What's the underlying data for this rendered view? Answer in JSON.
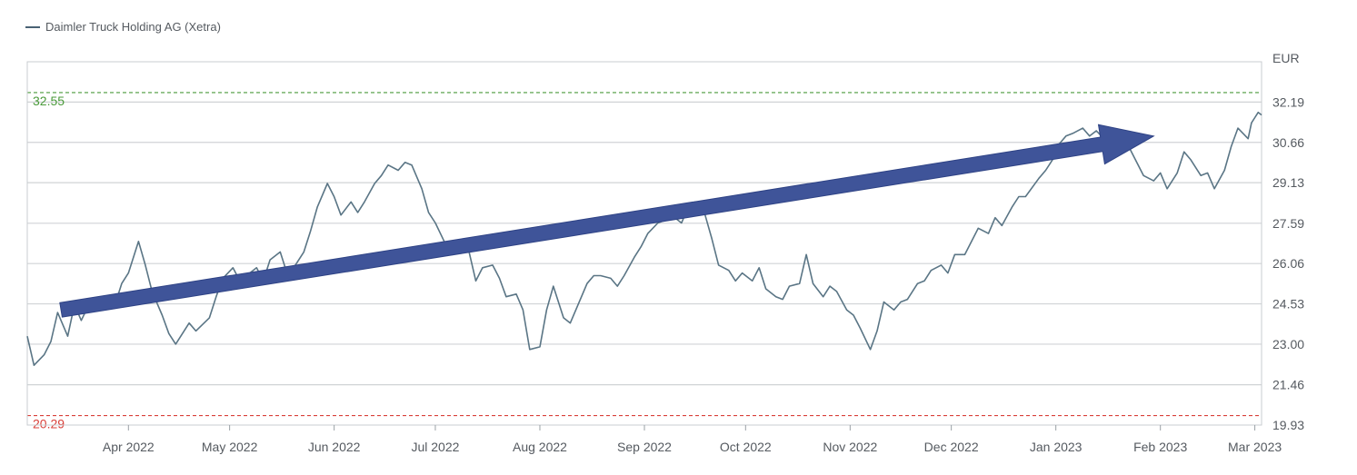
{
  "chart_data": {
    "type": "line",
    "title": "",
    "legend": {
      "label": "Daimler Truck Holding AG (Xetra)",
      "placement": "top-left"
    },
    "currency_label": "EUR",
    "ylim": [
      19.93,
      33.72
    ],
    "y_ticks": [
      "32.19",
      "30.66",
      "29.13",
      "27.59",
      "26.06",
      "24.53",
      "23.00",
      "21.46",
      "19.93"
    ],
    "x_ticks": [
      "Apr 2022",
      "May 2022",
      "Jun 2022",
      "Jul 2022",
      "Aug 2022",
      "Sep 2022",
      "Oct 2022",
      "Nov 2022",
      "Dec 2022",
      "Jan 2023",
      "Feb 2023",
      "Mar 2023"
    ],
    "x_tick_dates": [
      "2022-04-01",
      "2022-05-01",
      "2022-06-01",
      "2022-07-01",
      "2022-08-01",
      "2022-09-01",
      "2022-10-01",
      "2022-11-01",
      "2022-12-01",
      "2023-01-01",
      "2023-02-01",
      "2023-03-01"
    ],
    "xlim": [
      "2022-03-02",
      "2023-03-03"
    ],
    "grid": true,
    "reference_lines": [
      {
        "label": "32.55",
        "value": 32.55,
        "color": "#4a9a3a",
        "style": "dashed"
      },
      {
        "label": "20.29",
        "value": 20.29,
        "color": "#d9403a",
        "style": "dashed"
      }
    ],
    "annotation_arrow": {
      "from": {
        "date": "2022-03-12",
        "value": 24.3
      },
      "to": {
        "date": "2023-01-30",
        "value": 30.9
      },
      "color": "#3f5499"
    },
    "series": [
      {
        "name": "Daimler Truck Holding AG (Xetra)",
        "color": "#5a7585",
        "points": [
          [
            "2022-03-02",
            23.3
          ],
          [
            "2022-03-04",
            22.2
          ],
          [
            "2022-03-07",
            22.6
          ],
          [
            "2022-03-09",
            23.1
          ],
          [
            "2022-03-11",
            24.2
          ],
          [
            "2022-03-14",
            23.3
          ],
          [
            "2022-03-16",
            24.5
          ],
          [
            "2022-03-18",
            23.9
          ],
          [
            "2022-03-21",
            24.7
          ],
          [
            "2022-03-23",
            24.3
          ],
          [
            "2022-03-25",
            24.7
          ],
          [
            "2022-03-28",
            24.5
          ],
          [
            "2022-03-30",
            25.3
          ],
          [
            "2022-04-01",
            25.7
          ],
          [
            "2022-04-04",
            26.9
          ],
          [
            "2022-04-06",
            26.0
          ],
          [
            "2022-04-08",
            25.0
          ],
          [
            "2022-04-11",
            24.1
          ],
          [
            "2022-04-13",
            23.4
          ],
          [
            "2022-04-15",
            23.0
          ],
          [
            "2022-04-19",
            23.8
          ],
          [
            "2022-04-21",
            23.5
          ],
          [
            "2022-04-25",
            24.0
          ],
          [
            "2022-04-27",
            24.8
          ],
          [
            "2022-04-29",
            25.5
          ],
          [
            "2022-05-02",
            25.9
          ],
          [
            "2022-05-04",
            25.4
          ],
          [
            "2022-05-06",
            25.6
          ],
          [
            "2022-05-09",
            25.9
          ],
          [
            "2022-05-11",
            25.4
          ],
          [
            "2022-05-13",
            26.2
          ],
          [
            "2022-05-16",
            26.5
          ],
          [
            "2022-05-18",
            25.7
          ],
          [
            "2022-05-20",
            25.9
          ],
          [
            "2022-05-23",
            26.5
          ],
          [
            "2022-05-25",
            27.3
          ],
          [
            "2022-05-27",
            28.2
          ],
          [
            "2022-05-30",
            29.1
          ],
          [
            "2022-06-01",
            28.6
          ],
          [
            "2022-06-03",
            27.9
          ],
          [
            "2022-06-06",
            28.4
          ],
          [
            "2022-06-08",
            28.0
          ],
          [
            "2022-06-10",
            28.4
          ],
          [
            "2022-06-13",
            29.1
          ],
          [
            "2022-06-15",
            29.4
          ],
          [
            "2022-06-17",
            29.8
          ],
          [
            "2022-06-20",
            29.6
          ],
          [
            "2022-06-22",
            29.9
          ],
          [
            "2022-06-24",
            29.8
          ],
          [
            "2022-06-27",
            28.9
          ],
          [
            "2022-06-29",
            28.0
          ],
          [
            "2022-07-01",
            27.6
          ],
          [
            "2022-07-04",
            26.8
          ],
          [
            "2022-07-06",
            26.4
          ],
          [
            "2022-07-08",
            26.9
          ],
          [
            "2022-07-11",
            26.5
          ],
          [
            "2022-07-13",
            25.4
          ],
          [
            "2022-07-15",
            25.9
          ],
          [
            "2022-07-18",
            26.0
          ],
          [
            "2022-07-20",
            25.5
          ],
          [
            "2022-07-22",
            24.8
          ],
          [
            "2022-07-25",
            24.9
          ],
          [
            "2022-07-27",
            24.3
          ],
          [
            "2022-07-29",
            22.8
          ],
          [
            "2022-08-01",
            22.9
          ],
          [
            "2022-08-03",
            24.3
          ],
          [
            "2022-08-05",
            25.2
          ],
          [
            "2022-08-08",
            24.0
          ],
          [
            "2022-08-10",
            23.8
          ],
          [
            "2022-08-12",
            24.4
          ],
          [
            "2022-08-15",
            25.3
          ],
          [
            "2022-08-17",
            25.6
          ],
          [
            "2022-08-19",
            25.6
          ],
          [
            "2022-08-22",
            25.5
          ],
          [
            "2022-08-24",
            25.2
          ],
          [
            "2022-08-26",
            25.6
          ],
          [
            "2022-08-29",
            26.3
          ],
          [
            "2022-08-31",
            26.7
          ],
          [
            "2022-09-02",
            27.2
          ],
          [
            "2022-09-05",
            27.6
          ],
          [
            "2022-09-07",
            27.7
          ],
          [
            "2022-09-09",
            27.9
          ],
          [
            "2022-09-12",
            27.6
          ],
          [
            "2022-09-14",
            28.2
          ],
          [
            "2022-09-16",
            28.4
          ],
          [
            "2022-09-19",
            27.9
          ],
          [
            "2022-09-21",
            27.0
          ],
          [
            "2022-09-23",
            26.0
          ],
          [
            "2022-09-26",
            25.8
          ],
          [
            "2022-09-28",
            25.4
          ],
          [
            "2022-09-30",
            25.7
          ],
          [
            "2022-10-03",
            25.4
          ],
          [
            "2022-10-05",
            25.9
          ],
          [
            "2022-10-07",
            25.1
          ],
          [
            "2022-10-10",
            24.8
          ],
          [
            "2022-10-12",
            24.7
          ],
          [
            "2022-10-14",
            25.2
          ],
          [
            "2022-10-17",
            25.3
          ],
          [
            "2022-10-19",
            26.4
          ],
          [
            "2022-10-21",
            25.3
          ],
          [
            "2022-10-24",
            24.8
          ],
          [
            "2022-10-26",
            25.2
          ],
          [
            "2022-10-28",
            25.0
          ],
          [
            "2022-10-31",
            24.3
          ],
          [
            "2022-11-02",
            24.1
          ],
          [
            "2022-11-04",
            23.6
          ],
          [
            "2022-11-07",
            22.8
          ],
          [
            "2022-11-09",
            23.5
          ],
          [
            "2022-11-11",
            24.6
          ],
          [
            "2022-11-14",
            24.3
          ],
          [
            "2022-11-16",
            24.6
          ],
          [
            "2022-11-18",
            24.7
          ],
          [
            "2022-11-21",
            25.3
          ],
          [
            "2022-11-23",
            25.4
          ],
          [
            "2022-11-25",
            25.8
          ],
          [
            "2022-11-28",
            26.0
          ],
          [
            "2022-11-30",
            25.7
          ],
          [
            "2022-12-02",
            26.4
          ],
          [
            "2022-12-05",
            26.4
          ],
          [
            "2022-12-07",
            26.9
          ],
          [
            "2022-12-09",
            27.4
          ],
          [
            "2022-12-12",
            27.2
          ],
          [
            "2022-12-14",
            27.8
          ],
          [
            "2022-12-16",
            27.5
          ],
          [
            "2022-12-19",
            28.2
          ],
          [
            "2022-12-21",
            28.6
          ],
          [
            "2022-12-23",
            28.6
          ],
          [
            "2022-12-27",
            29.3
          ],
          [
            "2022-12-29",
            29.6
          ],
          [
            "2022-12-31",
            30.0
          ],
          [
            "2023-01-02",
            30.6
          ],
          [
            "2023-01-04",
            30.9
          ],
          [
            "2023-01-06",
            31.0
          ],
          [
            "2023-01-09",
            31.2
          ],
          [
            "2023-01-11",
            30.9
          ],
          [
            "2023-01-13",
            31.1
          ],
          [
            "2023-01-16",
            30.7
          ],
          [
            "2023-01-18",
            30.6
          ],
          [
            "2023-01-20",
            30.9
          ],
          [
            "2023-01-23",
            30.4
          ],
          [
            "2023-01-25",
            29.9
          ],
          [
            "2023-01-27",
            29.4
          ],
          [
            "2023-01-30",
            29.2
          ],
          [
            "2023-02-01",
            29.5
          ],
          [
            "2023-02-03",
            28.9
          ],
          [
            "2023-02-06",
            29.5
          ],
          [
            "2023-02-08",
            30.3
          ],
          [
            "2023-02-10",
            30.0
          ],
          [
            "2023-02-13",
            29.4
          ],
          [
            "2023-02-15",
            29.5
          ],
          [
            "2023-02-17",
            28.9
          ],
          [
            "2023-02-20",
            29.6
          ],
          [
            "2023-02-22",
            30.5
          ],
          [
            "2023-02-24",
            31.2
          ],
          [
            "2023-02-27",
            30.8
          ],
          [
            "2023-02-28",
            31.4
          ],
          [
            "2023-03-01",
            31.6
          ],
          [
            "2023-03-02",
            31.8
          ],
          [
            "2023-03-03",
            31.7
          ]
        ]
      }
    ]
  }
}
